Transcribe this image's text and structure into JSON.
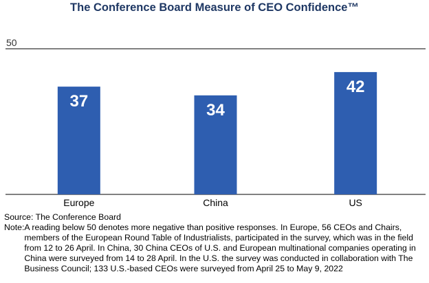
{
  "chart_data": {
    "type": "bar",
    "title": "The Conference Board Measure of CEO Confidence™",
    "categories": [
      "Europe",
      "China",
      "US"
    ],
    "values": [
      37,
      34,
      42
    ],
    "ylim": [
      0,
      50
    ],
    "yticks": [
      50
    ],
    "xlabel": "",
    "ylabel": "",
    "grid": false,
    "bar_color": "#2e5eb0",
    "title_color": "#1f3864"
  },
  "source": "Source: The Conference Board",
  "note_label": "Note:",
  "note": "A reading below 50 denotes more negative than positive responses. In Europe, 56 CEOs and Chairs, members of the European Round Table of Industrialists, participated in the survey, which was in the field from 12 to 26 April. In China, 30 China CEOs of U.S. and European multinational companies operating in China were surveyed from 14 to 28 April. In the U.S. the survey was conducted in collaboration with The Business Council; 133 U.S.-based CEOs were surveyed from April 25 to May 9, 2022"
}
